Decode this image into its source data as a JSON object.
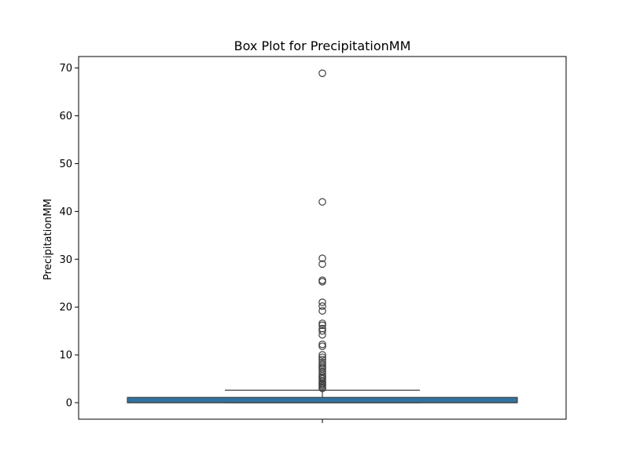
{
  "chart_data": {
    "type": "box",
    "title": "Box Plot for PrecipitationMM",
    "xlabel": "",
    "ylabel": "PrecipitationMM",
    "ylim": [
      -3.45,
      72.4
    ],
    "yticks": [
      0,
      10,
      20,
      30,
      40,
      50,
      60,
      70
    ],
    "grid": false,
    "legend": "none",
    "box": {
      "q1": 0.0,
      "median": 0.0,
      "q3": 1.1,
      "whisker_low": 0.0,
      "whisker_high": 2.6,
      "fill": "#3274a1",
      "edge": "#3f3f3f"
    },
    "outliers": [
      3.0,
      3.2,
      3.5,
      3.8,
      4.0,
      4.3,
      4.6,
      5.0,
      5.3,
      5.6,
      6.0,
      6.5,
      7.0,
      7.3,
      7.6,
      8.0,
      8.4,
      9.0,
      9.5,
      10.0,
      11.8,
      12.2,
      14.2,
      15.0,
      15.5,
      16.2,
      16.6,
      19.2,
      20.2,
      21.0,
      25.3,
      25.6,
      29.0,
      30.2,
      42.0,
      68.9
    ]
  }
}
